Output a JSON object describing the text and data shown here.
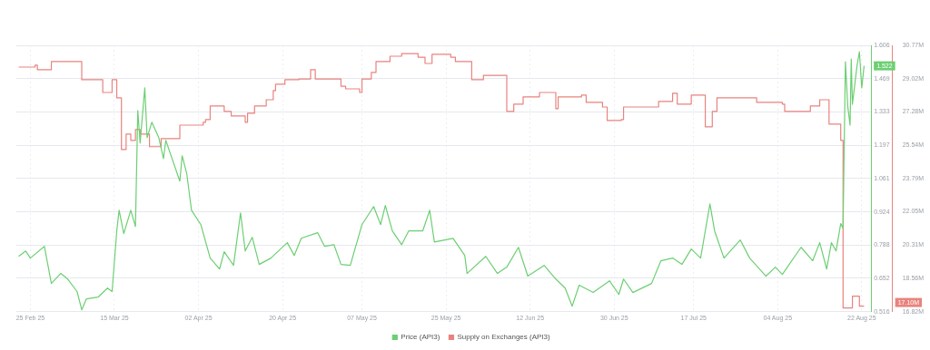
{
  "chart_data": {
    "type": "line",
    "xlim": [
      "2025-02-22",
      "2025-08-24"
    ],
    "xticks": [
      {
        "value": "2025-02-25",
        "label": "25 Feb 25"
      },
      {
        "value": "2025-03-15",
        "label": "15 Mar 25"
      },
      {
        "value": "2025-04-02",
        "label": "02 Apr 25"
      },
      {
        "value": "2025-04-20",
        "label": "20 Apr 25"
      },
      {
        "value": "2025-05-07",
        "label": "07 May 25"
      },
      {
        "value": "2025-05-25",
        "label": "25 May 25"
      },
      {
        "value": "2025-06-12",
        "label": "12 Jun 25"
      },
      {
        "value": "2025-06-30",
        "label": "30 Jun 25"
      },
      {
        "value": "2025-07-17",
        "label": "17 Jul 25"
      },
      {
        "value": "2025-08-04",
        "label": "04 Aug 25"
      },
      {
        "value": "2025-08-22",
        "label": "22 Aug 25"
      }
    ],
    "ylim": [
      0.516,
      1.606
    ],
    "yticks": [
      0.516,
      0.652,
      0.788,
      0.924,
      1.061,
      1.197,
      1.333,
      1.469,
      1.606
    ],
    "y2lim": [
      16.82,
      30.77
    ],
    "y2ticks": [
      {
        "value": 16.82,
        "label": "16.82M"
      },
      {
        "value": 18.56,
        "label": "18.56M"
      },
      {
        "value": 20.31,
        "label": "20.31M"
      },
      {
        "value": 22.05,
        "label": "22.05M"
      },
      {
        "value": 23.79,
        "label": "23.79M"
      },
      {
        "value": 25.54,
        "label": "25.54M"
      },
      {
        "value": 27.28,
        "label": "27.28M"
      },
      {
        "value": 29.02,
        "label": "29.02M"
      },
      {
        "value": 30.77,
        "label": "30.77M"
      }
    ],
    "grid": true,
    "legend": "bottom",
    "marker": "none",
    "annotations": [
      "1.522",
      "17.10M"
    ],
    "series": [
      {
        "name": "Price (API3)",
        "type": "line",
        "color": "#6ccf72",
        "x": [
          "2025-02-22T12:00",
          "2025-02-24",
          "2025-02-25",
          "2025-02-28",
          "2025-03-01T12:00",
          "2025-03-03T12:00",
          "2025-03-05",
          "2025-03-07",
          "2025-03-08",
          "2025-03-09",
          "2025-03-11T12:00",
          "2025-03-13T12:00",
          "2025-03-14T12:00",
          "2025-03-15T12:00",
          "2025-03-16",
          "2025-03-17",
          "2025-03-18T12:00",
          "2025-03-19T12:00",
          "2025-03-20",
          "2025-03-20T12:00",
          "2025-03-21T12:00",
          "2025-03-22",
          "2025-03-23",
          "2025-03-24T12:00",
          "2025-03-25T12:00",
          "2025-03-26",
          "2025-03-27",
          "2025-03-29",
          "2025-03-29T12:00",
          "2025-03-30T12:00",
          "2025-03-31T12:00",
          "2025-04-02T12:00",
          "2025-04-04T12:00",
          "2025-04-06T12:00",
          "2025-04-07T12:00",
          "2025-04-09T12:00",
          "2025-04-11",
          "2025-04-12",
          "2025-04-13T12:00",
          "2025-04-15",
          "2025-04-17T12:00",
          "2025-04-21",
          "2025-04-22T12:00",
          "2025-04-24",
          "2025-04-27T12:00",
          "2025-04-29",
          "2025-05-01",
          "2025-05-02T12:00",
          "2025-05-04T12:00",
          "2025-05-07",
          "2025-05-09T12:00",
          "2025-05-11",
          "2025-05-12",
          "2025-05-13T12:00",
          "2025-05-15T12:00",
          "2025-05-17",
          "2025-05-20",
          "2025-05-21T12:00",
          "2025-05-22T12:00",
          "2025-05-26T12:00",
          "2025-05-29",
          "2025-05-29T12:00",
          "2025-06-02T12:00",
          "2025-06-05",
          "2025-06-07",
          "2025-06-09T12:00",
          "2025-06-11T12:00",
          "2025-06-15",
          "2025-06-17T12:00",
          "2025-06-19T12:00",
          "2025-06-21",
          "2025-06-22T12:00",
          "2025-06-25T12:00",
          "2025-06-29",
          "2025-07-01",
          "2025-07-02",
          "2025-07-04",
          "2025-07-08",
          "2025-07-10",
          "2025-07-12T12:00",
          "2025-07-14T12:00",
          "2025-07-16T12:00",
          "2025-07-18T12:00",
          "2025-07-20T12:00",
          "2025-07-21T12:00",
          "2025-07-23T12:00",
          "2025-07-27",
          "2025-07-29",
          "2025-08-01T12:00",
          "2025-08-03T12:00",
          "2025-08-05",
          "2025-08-09",
          "2025-08-11T12:00",
          "2025-08-13",
          "2025-08-14T12:00",
          "2025-08-15T12:00",
          "2025-08-16T12:00",
          "2025-08-17T12:00",
          "2025-08-18",
          "2025-08-18T12:00",
          "2025-08-19",
          "2025-08-19T12:00",
          "2025-08-19T18:00",
          "2025-08-20",
          "2025-08-21",
          "2025-08-21T12:00",
          "2025-08-22",
          "2025-08-22T12:00"
        ],
        "values": [
          0.742,
          0.764,
          0.735,
          0.783,
          0.631,
          0.672,
          0.649,
          0.598,
          0.523,
          0.568,
          0.575,
          0.612,
          0.598,
          0.846,
          0.931,
          0.835,
          0.931,
          0.864,
          1.339,
          1.206,
          1.432,
          1.228,
          1.291,
          1.228,
          1.142,
          1.217,
          1.161,
          1.05,
          1.154,
          1.079,
          0.931,
          0.872,
          0.735,
          0.69,
          0.761,
          0.705,
          0.92,
          0.764,
          0.82,
          0.709,
          0.735,
          0.798,
          0.746,
          0.816,
          0.839,
          0.783,
          0.79,
          0.709,
          0.705,
          0.872,
          0.946,
          0.872,
          0.95,
          0.846,
          0.79,
          0.846,
          0.846,
          0.931,
          0.801,
          0.816,
          0.746,
          0.672,
          0.742,
          0.672,
          0.698,
          0.779,
          0.661,
          0.705,
          0.649,
          0.612,
          0.538,
          0.624,
          0.594,
          0.642,
          0.586,
          0.649,
          0.594,
          0.631,
          0.724,
          0.735,
          0.709,
          0.772,
          0.735,
          0.957,
          0.846,
          0.735,
          0.809,
          0.735,
          0.661,
          0.698,
          0.668,
          0.779,
          0.724,
          0.798,
          0.69,
          0.798,
          0.764,
          0.876,
          0.857,
          1.539,
          1.357,
          1.28,
          1.55,
          1.365,
          1.524,
          1.58,
          1.432,
          1.522
        ]
      },
      {
        "name": "Supply on Exchanges (API3)",
        "type": "step",
        "axis": "y2",
        "color": "#e8837e",
        "x": [
          "2025-02-22T12:00",
          "2025-02-26",
          "2025-02-26T12:00",
          "2025-03-01T12:00",
          "2025-03-08",
          "2025-03-12T12:00",
          "2025-03-14T12:00",
          "2025-03-15T12:00",
          "2025-03-16T12:00",
          "2025-03-17T12:00",
          "2025-03-18T12:00",
          "2025-03-19T12:00",
          "2025-03-20T12:00",
          "2025-03-22T12:00",
          "2025-03-25",
          "2025-03-29",
          "2025-04-03",
          "2025-04-03T12:00",
          "2025-04-04T12:00",
          "2025-04-07T12:00",
          "2025-04-09",
          "2025-04-12",
          "2025-04-12T12:00",
          "2025-04-14",
          "2025-04-16T12:00",
          "2025-04-18",
          "2025-04-18T12:00",
          "2025-04-20T12:00",
          "2025-04-23T12:00",
          "2025-04-26",
          "2025-04-27",
          "2025-05-02T12:00",
          "2025-05-03T12:00",
          "2025-05-06T12:00",
          "2025-05-07",
          "2025-05-09",
          "2025-05-10",
          "2025-05-13",
          "2025-05-15T12:00",
          "2025-05-19",
          "2025-05-20T12:00",
          "2025-05-22",
          "2025-05-26",
          "2025-05-27",
          "2025-05-30T12:00",
          "2025-06-02",
          "2025-06-07",
          "2025-06-08T12:00",
          "2025-06-10T12:00",
          "2025-06-14",
          "2025-06-17T12:00",
          "2025-06-18",
          "2025-06-23",
          "2025-06-24",
          "2025-06-27T12:00",
          "2025-06-28T12:00",
          "2025-07-01T12:00",
          "2025-07-02",
          "2025-07-09T12:00",
          "2025-07-12T12:00",
          "2025-07-13T12:00",
          "2025-07-16T12:00",
          "2025-07-19T12:00",
          "2025-07-21",
          "2025-07-22",
          "2025-07-30T12:00",
          "2025-08-05",
          "2025-08-05T12:00",
          "2025-08-11",
          "2025-08-13",
          "2025-08-15",
          "2025-08-17T12:00",
          "2025-08-18",
          "2025-08-20",
          "2025-08-21T12:00",
          "2025-08-22T12:00"
        ],
        "values": [
          29.63,
          29.73,
          29.49,
          29.92,
          28.97,
          28.3,
          28.97,
          28.02,
          25.31,
          26.12,
          25.79,
          26.36,
          26.12,
          25.46,
          25.88,
          26.59,
          26.74,
          26.88,
          27.59,
          27.31,
          27.07,
          26.74,
          27.21,
          27.59,
          27.92,
          28.4,
          28.73,
          28.97,
          29.01,
          29.49,
          29.01,
          28.63,
          28.49,
          28.3,
          29.01,
          29.35,
          29.92,
          30.2,
          30.34,
          30.15,
          29.82,
          30.3,
          30.15,
          29.92,
          28.97,
          29.2,
          27.31,
          27.69,
          28.07,
          28.3,
          27.45,
          28.07,
          28.16,
          27.78,
          27.54,
          26.83,
          26.88,
          27.54,
          27.83,
          28.26,
          27.69,
          28.16,
          26.5,
          27.31,
          28.02,
          27.78,
          27.69,
          27.31,
          27.59,
          27.92,
          26.64,
          25.79,
          17.01,
          17.63,
          17.1,
          17.1
        ]
      }
    ]
  }
}
